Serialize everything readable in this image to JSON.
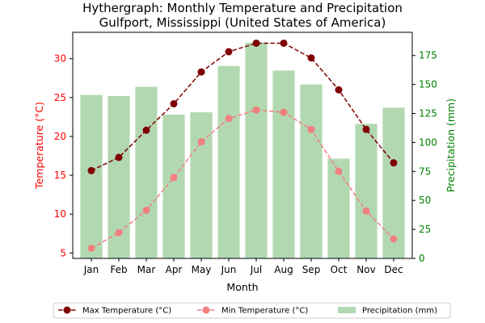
{
  "chart_data": {
    "type": "bar+line",
    "title": "Hythergraph: Monthly Temperature and Precipitation",
    "subtitle": "Gulfport, Mississippi (United States of America)",
    "xlabel": "Month",
    "ylabel_left": "Temperature (°C)",
    "ylabel_right": "Precipitation (mm)",
    "categories": [
      "Jan",
      "Feb",
      "Mar",
      "Apr",
      "May",
      "Jun",
      "Jul",
      "Aug",
      "Sep",
      "Oct",
      "Nov",
      "Dec"
    ],
    "left_axis": {
      "ylim": [
        4.3,
        33.4
      ],
      "ticks": [
        5,
        10,
        15,
        20,
        25,
        30
      ],
      "color": "#ff0000"
    },
    "right_axis": {
      "ylim": [
        0,
        195
      ],
      "ticks": [
        0,
        25,
        50,
        75,
        100,
        125,
        150,
        175
      ],
      "color": "#008000"
    },
    "series": [
      {
        "name": "Max Temperature (°C)",
        "type": "line",
        "axis": "left",
        "color": "#800000",
        "linestyle": "dashed",
        "values": [
          15.6,
          17.3,
          20.8,
          24.2,
          28.3,
          30.9,
          32.0,
          32.0,
          30.1,
          26.0,
          20.9,
          16.6
        ]
      },
      {
        "name": "Min Temperature (°C)",
        "type": "line",
        "axis": "left",
        "color": "#f08080",
        "linestyle": "dashed",
        "values": [
          5.6,
          7.6,
          10.5,
          14.7,
          19.3,
          22.3,
          23.4,
          23.1,
          20.9,
          15.5,
          10.4,
          6.8
        ]
      },
      {
        "name": "Precipitation (mm)",
        "type": "bar",
        "axis": "right",
        "color": "#b2d8b2",
        "values": [
          141,
          140,
          148,
          124,
          126,
          166,
          186,
          162,
          150,
          86,
          116,
          130
        ]
      }
    ],
    "legend": {
      "placement": "bottom"
    },
    "grid": false
  }
}
